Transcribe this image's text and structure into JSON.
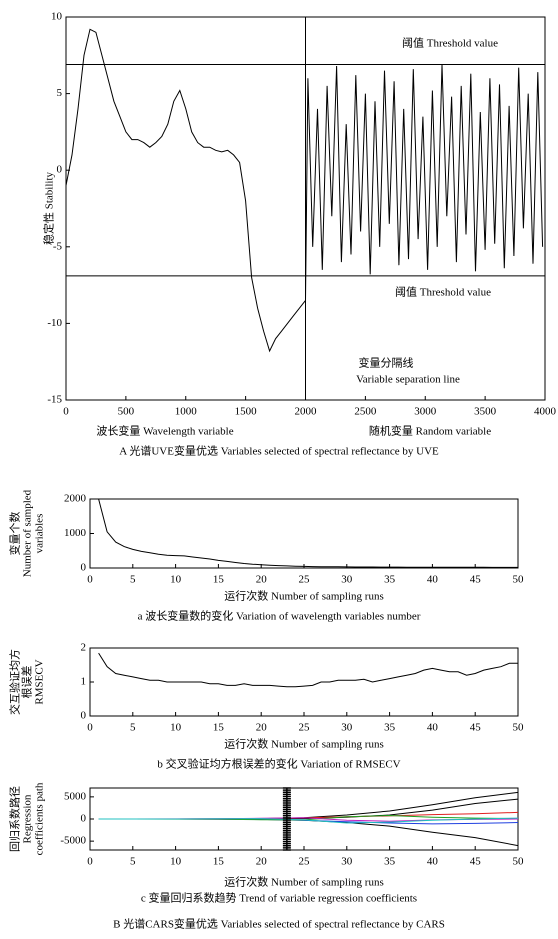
{
  "figure_caption": "B 光谱CARS变量优选  Variables selected of  spectral reflectance by CARS",
  "chart_data": [
    {
      "type": "line",
      "caption": "A 光谱UVE变量优选  Variables selected of  spectral reflectance by UVE",
      "ylabel": [
        "稳定性 Stability"
      ],
      "xlabels": [
        "波长变量 Wavelength variable",
        "随机变量 Random variable"
      ],
      "annotations": [
        "阈值 Threshold value",
        "阈值 Threshold value",
        "变量分隔线",
        "Variable separation line"
      ],
      "thresholds": [
        6.9,
        -6.9
      ],
      "separator_x": 2000,
      "color": "#000000",
      "xlim": [
        0,
        4000
      ],
      "xticks": [
        0,
        500,
        1000,
        1500,
        2000,
        2500,
        3000,
        3500,
        4000
      ],
      "ylim": [
        -15,
        10
      ],
      "yticks": [
        -15,
        -10,
        -5,
        0,
        5,
        10
      ],
      "x": [
        0,
        50,
        100,
        150,
        200,
        250,
        300,
        350,
        400,
        450,
        500,
        550,
        600,
        650,
        700,
        750,
        800,
        850,
        900,
        950,
        1000,
        1050,
        1100,
        1150,
        1200,
        1250,
        1300,
        1350,
        1400,
        1450,
        1500,
        1550,
        1600,
        1650,
        1700,
        1750,
        1800,
        1850,
        1900,
        1950,
        2000,
        2020,
        2060,
        2100,
        2140,
        2180,
        2220,
        2260,
        2300,
        2340,
        2380,
        2420,
        2460,
        2500,
        2540,
        2580,
        2620,
        2660,
        2700,
        2740,
        2780,
        2820,
        2860,
        2900,
        2940,
        2980,
        3020,
        3060,
        3100,
        3140,
        3180,
        3220,
        3260,
        3300,
        3340,
        3380,
        3420,
        3460,
        3500,
        3540,
        3580,
        3620,
        3660,
        3700,
        3740,
        3780,
        3820,
        3860,
        3900,
        3940,
        3980
      ],
      "values": [
        -1,
        1,
        4,
        7.5,
        9.2,
        9,
        7.5,
        6,
        4.5,
        3.5,
        2.5,
        2,
        2,
        1.8,
        1.5,
        1.8,
        2.2,
        3,
        4.5,
        5.2,
        4,
        2.5,
        1.8,
        1.5,
        1.5,
        1.3,
        1.2,
        1.3,
        1,
        0.5,
        -2,
        -7,
        -9,
        -10.5,
        -11.8,
        -11,
        -10.5,
        -10,
        -9.5,
        -9,
        -8.5,
        6,
        -5,
        4,
        -6.5,
        5.5,
        -3,
        6.8,
        -6,
        3,
        -5.5,
        6.2,
        -4,
        5,
        -6.8,
        4.5,
        -5,
        6.5,
        -3.5,
        5.8,
        -6.2,
        4,
        -5.8,
        6.6,
        -4.5,
        3.5,
        -6.5,
        5.2,
        -5,
        6.9,
        -3,
        4.8,
        -6,
        5.5,
        -4.2,
        6.3,
        -6.6,
        3.8,
        -5.2,
        6,
        -4.8,
        5.6,
        -6.4,
        4.2,
        -5.6,
        6.7,
        -3.8,
        5,
        -6.1,
        6.4,
        -5
      ]
    },
    {
      "type": "line",
      "caption": "a  波长变量数的变化 Variation of wavelength variables number",
      "ylabel": [
        "变量个数",
        "Number of sampled",
        "variables"
      ],
      "xlabels": [
        "运行次数 Number of sampling runs"
      ],
      "color": "#000000",
      "xlim": [
        0,
        50
      ],
      "xticks": [
        0,
        5,
        10,
        15,
        20,
        25,
        30,
        35,
        40,
        45,
        50
      ],
      "ylim": [
        0,
        2000
      ],
      "yticks": [
        0,
        1000,
        2000
      ],
      "x": [
        1,
        2,
        3,
        4,
        5,
        6,
        7,
        8,
        9,
        10,
        11,
        12,
        13,
        14,
        15,
        16,
        17,
        18,
        19,
        20,
        21,
        22,
        23,
        24,
        25,
        26,
        27,
        28,
        29,
        30,
        31,
        32,
        33,
        34,
        35,
        36,
        37,
        38,
        39,
        40,
        41,
        42,
        43,
        44,
        45,
        46,
        47,
        48,
        49,
        50
      ],
      "values": [
        2000,
        1050,
        750,
        620,
        540,
        480,
        440,
        400,
        370,
        360,
        350,
        320,
        290,
        260,
        220,
        190,
        160,
        130,
        110,
        95,
        80,
        70,
        60,
        52,
        45,
        40,
        38,
        36,
        34,
        32,
        30,
        29,
        28,
        27,
        26,
        25,
        24,
        23,
        22,
        22,
        21,
        21,
        20,
        20,
        19,
        19,
        18,
        18,
        17,
        17
      ]
    },
    {
      "type": "line",
      "caption": "b  交叉验证均方根误差的变化 Variation of RMSECV",
      "ylabel": [
        "交互验证均方",
        "根误差",
        "RMSECV"
      ],
      "xlabels": [
        "运行次数 Number of sampling runs"
      ],
      "color": "#000000",
      "xlim": [
        0,
        50
      ],
      "xticks": [
        0,
        5,
        10,
        15,
        20,
        25,
        30,
        35,
        40,
        45,
        50
      ],
      "ylim": [
        0,
        2
      ],
      "yticks": [
        0,
        1,
        2
      ],
      "x": [
        1,
        2,
        3,
        4,
        5,
        6,
        7,
        8,
        9,
        10,
        11,
        12,
        13,
        14,
        15,
        16,
        17,
        18,
        19,
        20,
        21,
        22,
        23,
        24,
        25,
        26,
        27,
        28,
        29,
        30,
        31,
        32,
        33,
        34,
        35,
        36,
        37,
        38,
        39,
        40,
        41,
        42,
        43,
        44,
        45,
        46,
        47,
        48,
        49,
        50
      ],
      "values": [
        1.85,
        1.45,
        1.25,
        1.2,
        1.15,
        1.1,
        1.05,
        1.05,
        1.0,
        1.0,
        1.0,
        1.0,
        1.0,
        0.95,
        0.95,
        0.9,
        0.9,
        0.95,
        0.9,
        0.9,
        0.9,
        0.88,
        0.86,
        0.86,
        0.88,
        0.9,
        1.0,
        1.0,
        1.05,
        1.05,
        1.05,
        1.08,
        1.0,
        1.05,
        1.1,
        1.15,
        1.2,
        1.25,
        1.35,
        1.4,
        1.35,
        1.3,
        1.3,
        1.2,
        1.25,
        1.35,
        1.4,
        1.45,
        1.55,
        1.55
      ]
    },
    {
      "type": "multiline",
      "caption": "c  变量回归系数趋势 Trend of variable regression coefficients",
      "ylabel": [
        "回归系数路径",
        "Regression",
        "coefficients path"
      ],
      "xlabels": [
        "运行次数 Number of sampling runs"
      ],
      "marker_x": 23,
      "xlim": [
        0,
        50
      ],
      "xticks": [
        0,
        5,
        10,
        15,
        20,
        25,
        30,
        35,
        40,
        45,
        50
      ],
      "ylim": [
        -7000,
        7000
      ],
      "yticks": [
        -5000,
        0,
        5000
      ],
      "x": [
        1,
        5,
        10,
        15,
        20,
        25,
        30,
        35,
        40,
        45,
        50
      ],
      "series": [
        {
          "color": "#000000",
          "values": [
            0,
            0,
            0,
            20,
            80,
            300,
            900,
            1800,
            3200,
            4800,
            6000
          ]
        },
        {
          "color": "#000000",
          "values": [
            0,
            0,
            0,
            -20,
            -80,
            -300,
            -800,
            -1600,
            -3000,
            -4200,
            -6000
          ]
        },
        {
          "color": "#000000",
          "values": [
            0,
            0,
            0,
            10,
            30,
            100,
            400,
            900,
            2000,
            3500,
            4500
          ]
        },
        {
          "color": "#e02020",
          "values": [
            0,
            0,
            0,
            30,
            100,
            250,
            500,
            700,
            1000,
            1200,
            1500
          ]
        },
        {
          "color": "#2040e0",
          "values": [
            0,
            0,
            0,
            -30,
            -100,
            -300,
            -600,
            -900,
            -1100,
            -1000,
            -800
          ]
        },
        {
          "color": "#20a020",
          "values": [
            0,
            0,
            -20,
            -60,
            -150,
            -200,
            500,
            800,
            400,
            200,
            100
          ]
        },
        {
          "color": "#c020c0",
          "values": [
            0,
            0,
            20,
            60,
            150,
            300,
            -300,
            -500,
            -200,
            -100,
            0
          ]
        },
        {
          "color": "#20c0c0",
          "values": [
            0,
            0,
            10,
            40,
            100,
            -200,
            -900,
            -700,
            -300,
            0,
            200
          ]
        }
      ]
    }
  ]
}
